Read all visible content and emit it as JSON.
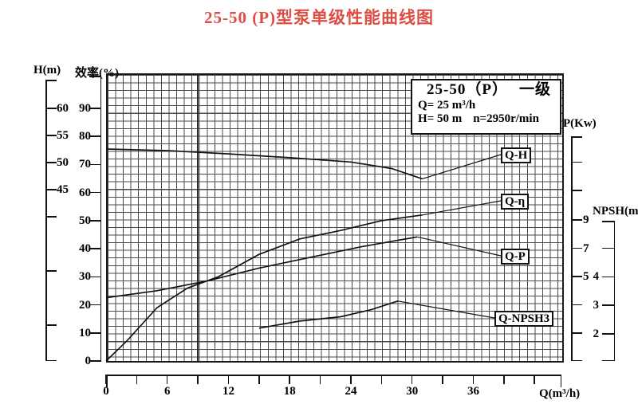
{
  "title": "25-50 (P)型泵单级性能曲线图",
  "title_color": "#dd4d44",
  "legend_box": {
    "model": "25-50（P）",
    "stage": "一级",
    "flow_line": "Q= 25 m³/h",
    "head_line": "H= 50 m",
    "speed_line": "n=2950r/min"
  },
  "axes": {
    "head": {
      "title": "H(m)",
      "tick_labels": [
        60,
        55,
        50,
        45
      ]
    },
    "efficiency": {
      "title": "效率(%)",
      "tick_labels": [
        90,
        80,
        70,
        60,
        50,
        40,
        30,
        20,
        10,
        0
      ]
    },
    "power": {
      "title": "P(Kw)",
      "tick_labels": [
        9,
        7,
        5
      ]
    },
    "npsh": {
      "title": "NPSH(m)",
      "tick_labels": [
        4,
        3,
        2
      ]
    },
    "flow": {
      "title": "Q(m³/h)",
      "tick_labels": [
        0,
        6,
        12,
        18,
        24,
        30,
        36
      ]
    }
  },
  "chart_data": {
    "type": "line",
    "title": "25-50 (P)型泵单级性能曲线图",
    "grid": true,
    "x_axis": {
      "label": "Q(m³/h)",
      "range": [
        0,
        42
      ],
      "tick_step": 3,
      "label_step": 6
    },
    "y_axes": [
      {
        "label": "H(m)",
        "labeled_ticks": [
          60,
          55,
          50,
          45
        ],
        "side": "left"
      },
      {
        "label": "效率(%)",
        "labeled_ticks": [
          90,
          80,
          70,
          60,
          50,
          40,
          30,
          20,
          10,
          0
        ],
        "side": "left"
      },
      {
        "label": "P(Kw)",
        "labeled_ticks": [
          9,
          7,
          5
        ],
        "side": "right"
      },
      {
        "label": "NPSH(m)",
        "labeled_ticks": [
          4,
          3,
          2
        ],
        "side": "right"
      }
    ],
    "series": [
      {
        "name": "Q-H",
        "y_axis": "H(m)",
        "x": [
          0,
          6,
          12,
          18,
          24,
          28,
          31
        ],
        "y": [
          52.5,
          52.2,
          51.6,
          50.9,
          50.1,
          48.9,
          47.0
        ]
      },
      {
        "name": "Q-η",
        "y_axis": "效率(%)",
        "x": [
          0,
          2,
          5,
          8,
          11,
          15,
          19,
          23,
          27,
          31
        ],
        "y": [
          0,
          7,
          19,
          26,
          30,
          38,
          43.5,
          46.5,
          50,
          52
        ]
      },
      {
        "name": "Q-P",
        "y_axis": "P(Kw)",
        "x": [
          0,
          5,
          10,
          15,
          19,
          25,
          30.5
        ],
        "y": [
          3.5,
          4.0,
          4.7,
          5.6,
          6.2,
          7.1,
          7.8
        ]
      },
      {
        "name": "Q-NPSH3",
        "y_axis": "NPSH(m)",
        "x": [
          15,
          19,
          23,
          26,
          28.6
        ],
        "y": [
          2.2,
          2.45,
          2.6,
          2.85,
          3.15
        ]
      }
    ]
  }
}
